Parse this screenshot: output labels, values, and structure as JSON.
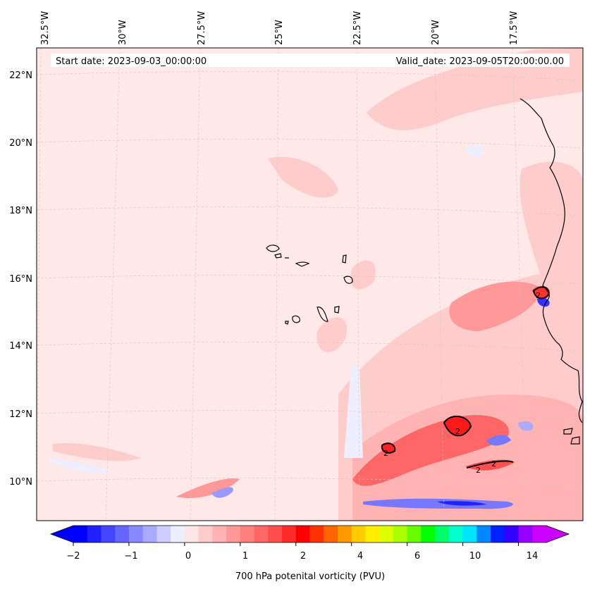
{
  "map": {
    "start_label": "Start date: 2023-09-03_00:00:00",
    "valid_label": "Valid_date: 2023-09-05T20:00:00.00",
    "lon_ticks": [
      "32.5°W",
      "30°W",
      "27.5°W",
      "25°W",
      "22.5°W",
      "20°W",
      "17.5°W"
    ],
    "lat_ticks": [
      "22°N",
      "20°N",
      "18°N",
      "16°N",
      "14°N",
      "12°N",
      "10°N"
    ],
    "contour_label": "2"
  },
  "colorbar": {
    "title": "700 hPa potenital vorticity (PVU)",
    "tick_labels": [
      "−2",
      "−1",
      "0",
      "1",
      "2",
      "4",
      "6",
      "10",
      "14"
    ],
    "colors": [
      "#0000ff",
      "#2020ff",
      "#4444ff",
      "#6666ff",
      "#8888ff",
      "#aaaaff",
      "#ccccff",
      "#eeeeff",
      "#ffe6e6",
      "#ffcccc",
      "#ffb3b3",
      "#ff9999",
      "#ff7f7f",
      "#ff6666",
      "#ff4d4d",
      "#ff2b2b",
      "#ff0000",
      "#ff3300",
      "#ff6600",
      "#ff9900",
      "#ffcc00",
      "#ffee00",
      "#ddff00",
      "#aaff00",
      "#66ff00",
      "#00ff00",
      "#00ff66",
      "#00ffcc",
      "#00e5ff",
      "#0088ff",
      "#0022ff",
      "#3300ff",
      "#9900ff",
      "#cc00ff"
    ],
    "extend_min_color": "#0000ff",
    "extend_max_color": "#cc00ff"
  },
  "palette": {
    "background": "#ffe8e8",
    "light_pink": "#ffcccc",
    "mid_pink": "#ffb3b3",
    "red_core": "#ff3030",
    "blue_weak": "#eeeeff",
    "blue_mid": "#7777ff",
    "blue_strong": "#2222ff"
  }
}
